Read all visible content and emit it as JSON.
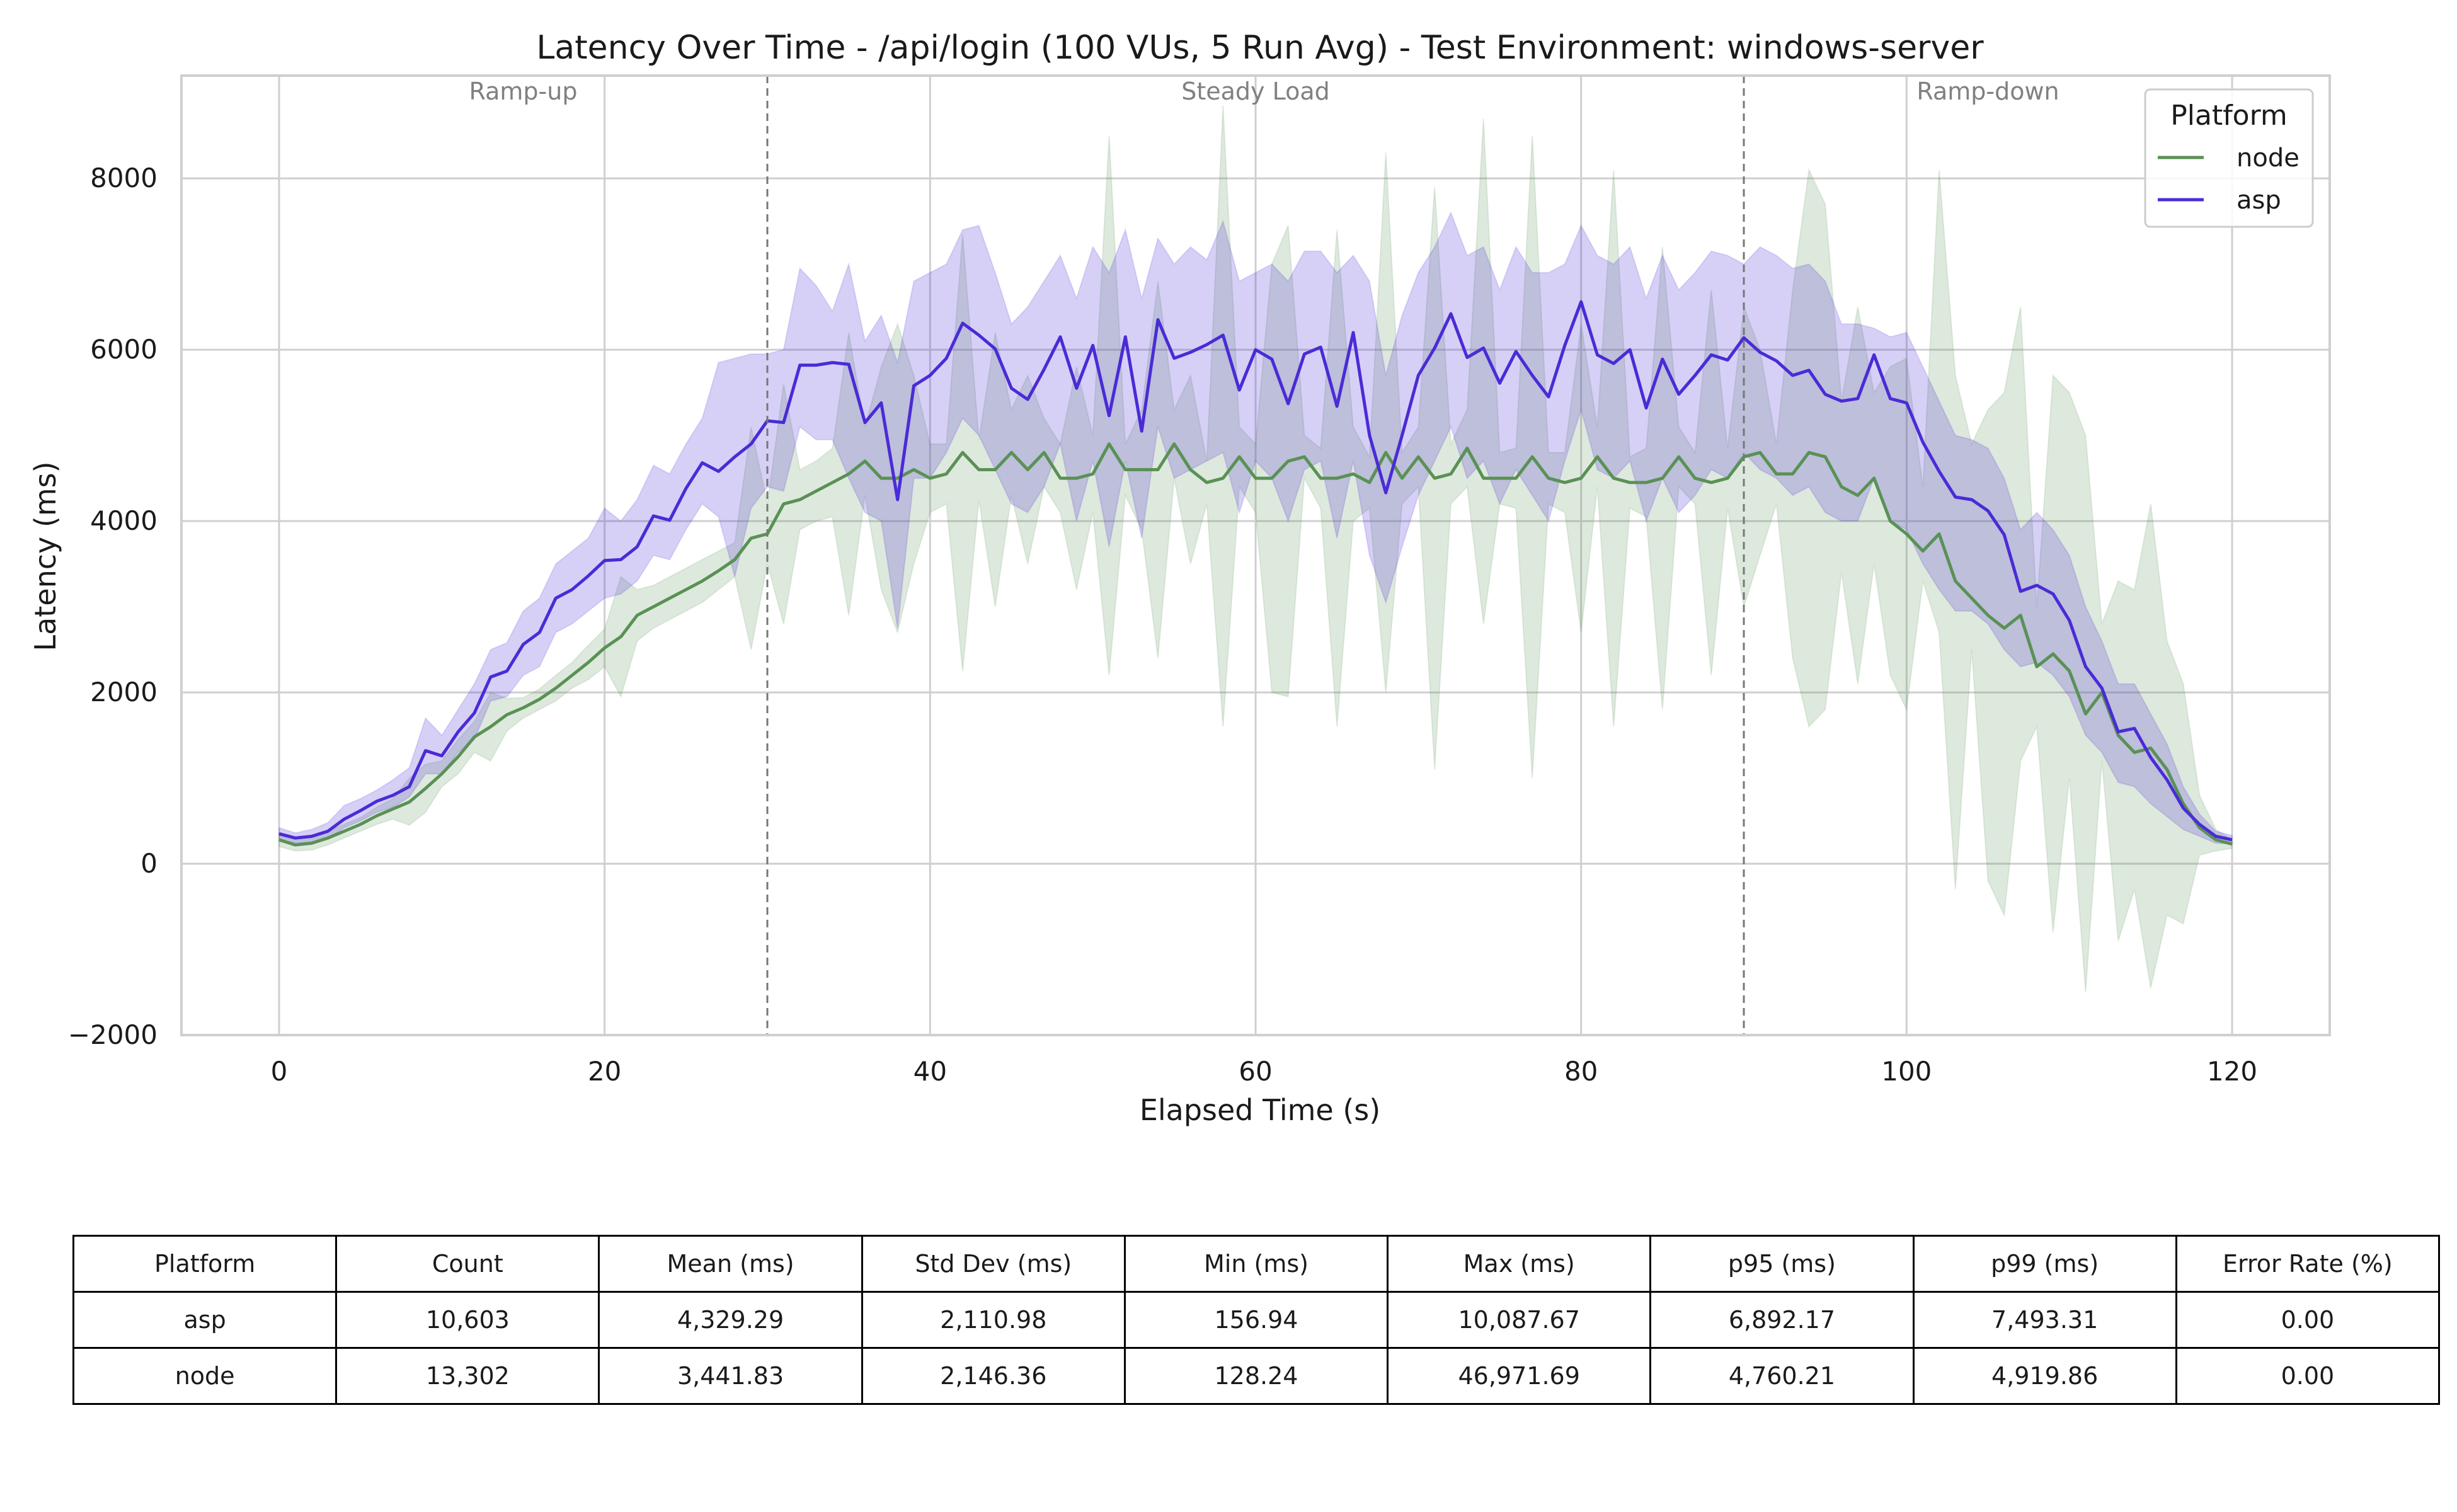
{
  "chart_data": {
    "type": "line",
    "title": "Latency Over Time - /api/login (100 VUs, 5 Run Avg) - Test Environment: windows-server",
    "xlabel": "Elapsed Time (s)",
    "ylabel": "Latency (ms)",
    "xlim": [
      -6,
      126
    ],
    "ylim": [
      -2000,
      9200
    ],
    "xticks": [
      0,
      20,
      40,
      60,
      80,
      100,
      120
    ],
    "yticks": [
      -2000,
      0,
      2000,
      4000,
      6000,
      8000
    ],
    "ytick_labels": [
      "−2000",
      "0",
      "2000",
      "4000",
      "6000",
      "8000"
    ],
    "grid": true,
    "legend": {
      "title": "Platform",
      "placement": "top-right"
    },
    "phase_markers": [
      30,
      90
    ],
    "phases": [
      {
        "label": "Ramp-up",
        "x": 15
      },
      {
        "label": "Steady Load",
        "x": 60
      },
      {
        "label": "Ramp-down",
        "x": 105
      }
    ],
    "series": [
      {
        "name": "node",
        "color": "#5a9155",
        "x": [
          0,
          1,
          2,
          3,
          4,
          5,
          6,
          7,
          8,
          9,
          10,
          11,
          12,
          13,
          14,
          15,
          16,
          17,
          18,
          19,
          20,
          21,
          22,
          23,
          24,
          25,
          26,
          27,
          28,
          29,
          30,
          31,
          32,
          33,
          34,
          35,
          36,
          37,
          38,
          39,
          40,
          41,
          42,
          43,
          44,
          45,
          46,
          47,
          48,
          49,
          50,
          51,
          52,
          53,
          54,
          55,
          56,
          57,
          58,
          59,
          60,
          61,
          62,
          63,
          64,
          65,
          66,
          67,
          68,
          69,
          70,
          71,
          72,
          73,
          74,
          75,
          76,
          77,
          78,
          79,
          80,
          81,
          82,
          83,
          84,
          85,
          86,
          87,
          88,
          89,
          90,
          91,
          92,
          93,
          94,
          95,
          96,
          97,
          98,
          99,
          100,
          101,
          102,
          103,
          104,
          105,
          106,
          107,
          108,
          109,
          110,
          111,
          112,
          113,
          114,
          115,
          116,
          117,
          118,
          119,
          120
        ],
        "values": [
          280,
          220,
          240,
          300,
          380,
          460,
          560,
          640,
          720,
          880,
          1050,
          1250,
          1480,
          1600,
          1740,
          1820,
          1920,
          2050,
          2200,
          2350,
          2520,
          2650,
          2900,
          3000,
          3100,
          3200,
          3300,
          3420,
          3550,
          3800,
          3850,
          4200,
          4250,
          4350,
          4450,
          4550,
          4700,
          4500,
          4500,
          4600,
          4500,
          4550,
          4800,
          4600,
          4600,
          4800,
          4600,
          4800,
          4500,
          4500,
          4550,
          4900,
          4600,
          4600,
          4600,
          4900,
          4600,
          4450,
          4500,
          4750,
          4500,
          4500,
          4700,
          4750,
          4500,
          4500,
          4550,
          4450,
          4800,
          4500,
          4750,
          4500,
          4550,
          4850,
          4500,
          4500,
          4500,
          4750,
          4500,
          4450,
          4500,
          4750,
          4500,
          4450,
          4450,
          4500,
          4750,
          4500,
          4450,
          4500,
          4750,
          4800,
          4550,
          4550,
          4800,
          4750,
          4400,
          4300,
          4500,
          4000,
          3850,
          3650,
          3850,
          3300,
          3100,
          2900,
          2750,
          2900,
          2300,
          2450,
          2250,
          1750,
          2000,
          1500,
          1300,
          1350,
          1100,
          700,
          420,
          280,
          230
        ],
        "band_low": [
          200,
          150,
          160,
          220,
          300,
          380,
          460,
          520,
          450,
          600,
          900,
          1050,
          1300,
          1200,
          1550,
          1700,
          1800,
          1900,
          2050,
          2150,
          2300,
          1950,
          2600,
          2750,
          2850,
          2950,
          3050,
          3200,
          3350,
          2500,
          3500,
          2800,
          3900,
          4000,
          4050,
          2900,
          4300,
          3200,
          2700,
          3500,
          4100,
          4200,
          2250,
          4250,
          3000,
          4300,
          3500,
          4400,
          4100,
          3200,
          4100,
          2200,
          4300,
          3900,
          2400,
          4500,
          3500,
          4200,
          1600,
          4400,
          4100,
          2000,
          1950,
          4500,
          4150,
          1600,
          4000,
          4150,
          2000,
          4200,
          4400,
          1100,
          4200,
          4400,
          2800,
          4200,
          4150,
          1000,
          4200,
          4100,
          2700,
          4400,
          1600,
          4150,
          4050,
          1800,
          4400,
          4200,
          2200,
          4150,
          3000,
          3600,
          4200,
          2400,
          1600,
          1800,
          3400,
          2100,
          3500,
          2200,
          1800,
          3300,
          2700,
          -300,
          2500,
          -200,
          -600,
          1200,
          1600,
          -800,
          1000,
          -1500,
          1200,
          -900,
          -300,
          -1450,
          -600,
          -700,
          100,
          150,
          180
        ],
        "band_high": [
          360,
          300,
          320,
          380,
          460,
          540,
          660,
          760,
          1000,
          1160,
          1200,
          1450,
          1660,
          2000,
          1930,
          1940,
          2040,
          2200,
          2350,
          2550,
          2740,
          3350,
          3200,
          3250,
          3350,
          3450,
          3550,
          3650,
          3750,
          5100,
          4200,
          5600,
          4600,
          4700,
          4850,
          6200,
          5100,
          5800,
          6300,
          5700,
          4900,
          4900,
          7350,
          4950,
          6200,
          5300,
          5700,
          5200,
          4900,
          5800,
          5000,
          8500,
          4900,
          5300,
          6800,
          5300,
          5700,
          4700,
          8850,
          5100,
          4900,
          7000,
          7450,
          5000,
          4850,
          7400,
          5100,
          4750,
          8300,
          4800,
          5100,
          7900,
          4900,
          5300,
          8700,
          4800,
          4850,
          8500,
          4800,
          4800,
          6300,
          5100,
          8100,
          4750,
          4850,
          7200,
          5100,
          4800,
          6700,
          4850,
          6500,
          6000,
          4900,
          6700,
          8100,
          7700,
          5400,
          6500,
          5500,
          5800,
          5900,
          4400,
          8100,
          5700,
          4900,
          5300,
          5500,
          6500,
          3000,
          5700,
          5500,
          5000,
          2800,
          3300,
          3200,
          4200,
          2600,
          2100,
          800,
          400,
          280
        ]
      },
      {
        "name": "asp",
        "color": "#4a2bd6",
        "x": [
          0,
          1,
          2,
          3,
          4,
          5,
          6,
          7,
          8,
          9,
          10,
          11,
          12,
          13,
          14,
          15,
          16,
          17,
          18,
          19,
          20,
          21,
          22,
          23,
          24,
          25,
          26,
          27,
          28,
          29,
          30,
          31,
          32,
          33,
          34,
          35,
          36,
          37,
          38,
          39,
          40,
          41,
          42,
          43,
          44,
          45,
          46,
          47,
          48,
          49,
          50,
          51,
          52,
          53,
          54,
          55,
          56,
          57,
          58,
          59,
          60,
          61,
          62,
          63,
          64,
          65,
          66,
          67,
          68,
          69,
          70,
          71,
          72,
          73,
          74,
          75,
          76,
          77,
          78,
          79,
          80,
          81,
          82,
          83,
          84,
          85,
          86,
          87,
          88,
          89,
          90,
          91,
          92,
          93,
          94,
          95,
          96,
          97,
          98,
          99,
          100,
          101,
          102,
          103,
          104,
          105,
          106,
          107,
          108,
          109,
          110,
          111,
          112,
          113,
          114,
          115,
          116,
          117,
          118,
          119,
          120
        ],
        "values": [
          350,
          300,
          320,
          380,
          520,
          620,
          730,
          800,
          900,
          1320,
          1260,
          1540,
          1760,
          2180,
          2250,
          2560,
          2700,
          3100,
          3200,
          3360,
          3540,
          3550,
          3700,
          4060,
          4010,
          4380,
          4680,
          4580,
          4750,
          4900,
          5170,
          5150,
          5820,
          5820,
          5850,
          5830,
          5150,
          5380,
          4250,
          5580,
          5700,
          5900,
          6310,
          6170,
          6010,
          5550,
          5420,
          5770,
          6150,
          5550,
          6050,
          5230,
          6150,
          5050,
          6350,
          5900,
          5970,
          6060,
          6170,
          5530,
          6000,
          5890,
          5370,
          5950,
          6030,
          5340,
          6200,
          5000,
          4330,
          5000,
          5700,
          6020,
          6420,
          5910,
          6020,
          5610,
          5980,
          5700,
          5450,
          6050,
          6560,
          5940,
          5840,
          6000,
          5320,
          5890,
          5480,
          5700,
          5940,
          5880,
          6140,
          5970,
          5870,
          5700,
          5760,
          5480,
          5400,
          5430,
          5940,
          5430,
          5380,
          4920,
          4580,
          4280,
          4250,
          4120,
          3840,
          3180,
          3250,
          3150,
          2840,
          2300,
          2050,
          1540,
          1580,
          1240,
          980,
          650,
          460,
          320,
          280
        ],
        "band_low": [
          280,
          240,
          250,
          290,
          420,
          500,
          600,
          660,
          780,
          1050,
          1050,
          1300,
          1450,
          1900,
          1950,
          2200,
          2300,
          2700,
          2800,
          2950,
          3100,
          3150,
          3300,
          3600,
          3550,
          3900,
          4200,
          4050,
          3350,
          4150,
          4400,
          4350,
          5100,
          4950,
          4950,
          4500,
          4100,
          4000,
          2750,
          4500,
          4500,
          4800,
          5200,
          5000,
          4600,
          4200,
          4100,
          4400,
          4900,
          4000,
          4700,
          3700,
          4700,
          3800,
          5100,
          4500,
          4600,
          4700,
          4800,
          4100,
          4700,
          4500,
          4000,
          4600,
          4700,
          3800,
          4700,
          3600,
          3050,
          3700,
          4300,
          4700,
          5100,
          4500,
          4700,
          4200,
          4600,
          4300,
          4000,
          4700,
          5300,
          4600,
          4500,
          4700,
          4000,
          4500,
          4100,
          4300,
          4600,
          4500,
          4800,
          4600,
          4500,
          4300,
          4400,
          4100,
          4000,
          4000,
          4500,
          4000,
          3900,
          3500,
          3200,
          2950,
          2950,
          2800,
          2500,
          2300,
          2350,
          2200,
          1950,
          1500,
          1300,
          950,
          900,
          700,
          550,
          400,
          320,
          240,
          230
        ],
        "band_high": [
          420,
          360,
          400,
          480,
          680,
          760,
          860,
          980,
          1120,
          1700,
          1500,
          1800,
          2100,
          2500,
          2580,
          2950,
          3100,
          3500,
          3650,
          3800,
          4150,
          4000,
          4250,
          4650,
          4550,
          4900,
          5200,
          5850,
          5900,
          5950,
          5950,
          6000,
          6950,
          6750,
          6450,
          7000,
          6100,
          6400,
          5850,
          6800,
          6900,
          7000,
          7400,
          7450,
          6900,
          6300,
          6500,
          6800,
          7100,
          6600,
          7200,
          6900,
          7400,
          6600,
          7300,
          7000,
          7200,
          7050,
          7500,
          6800,
          6900,
          7000,
          6800,
          7150,
          7150,
          6900,
          7100,
          6800,
          5700,
          6400,
          6900,
          7200,
          7600,
          7100,
          7200,
          6700,
          7200,
          6900,
          6900,
          7000,
          7450,
          7100,
          7000,
          7200,
          6600,
          7100,
          6700,
          6900,
          7150,
          7100,
          7000,
          7200,
          7100,
          6950,
          7000,
          6800,
          6300,
          6300,
          6250,
          6150,
          6200,
          5800,
          5400,
          5000,
          4950,
          4850,
          4500,
          3900,
          4100,
          3900,
          3600,
          3000,
          2600,
          2100,
          2100,
          1750,
          1400,
          900,
          580,
          380,
          330
        ]
      }
    ]
  },
  "table": {
    "headers": [
      "Platform",
      "Count",
      "Mean (ms)",
      "Std Dev (ms)",
      "Min (ms)",
      "Max (ms)",
      "p95 (ms)",
      "p99 (ms)",
      "Error Rate (%)"
    ],
    "rows": [
      [
        "asp",
        "10,603",
        "4,329.29",
        "2,110.98",
        "156.94",
        "10,087.67",
        "6,892.17",
        "7,493.31",
        "0.00"
      ],
      [
        "node",
        "13,302",
        "3,441.83",
        "2,146.36",
        "128.24",
        "46,971.69",
        "4,760.21",
        "4,919.86",
        "0.00"
      ]
    ]
  }
}
